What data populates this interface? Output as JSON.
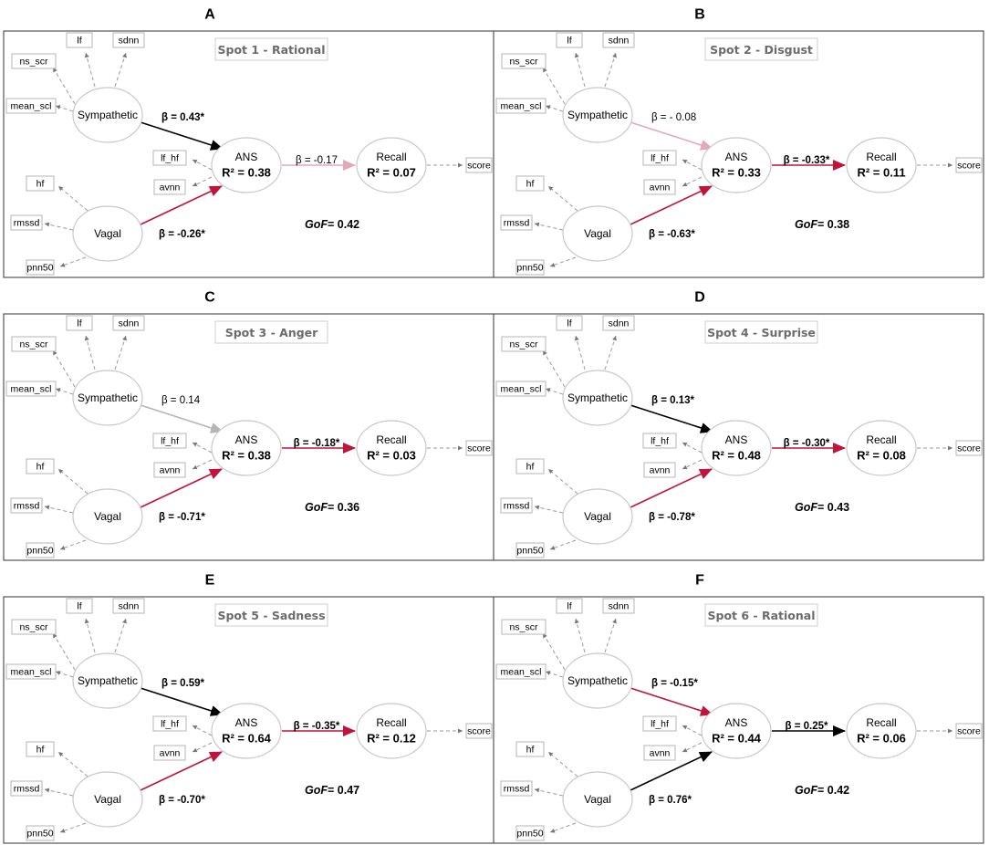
{
  "panels": [
    {
      "letter": "A",
      "title": "Spot 1 - Rational",
      "sym_beta": {
        "value": "β = 0.43*",
        "sig": true,
        "dir": "pos"
      },
      "vag_beta": {
        "value": "β = -0.26*",
        "sig": true,
        "dir": "neg"
      },
      "ans_beta": {
        "value": "β = -0.17",
        "sig": false,
        "dir": "neg"
      },
      "ans_r2": "R² = 0.38",
      "recall_r2": "R² = 0.07",
      "gof": "0.42"
    },
    {
      "letter": "B",
      "title": "Spot 2 - Disgust",
      "sym_beta": {
        "value": "β = - 0.08",
        "sig": false,
        "dir": "neg"
      },
      "vag_beta": {
        "value": "β = -0.63*",
        "sig": true,
        "dir": "neg"
      },
      "ans_beta": {
        "value": "β = -0.33*",
        "sig": true,
        "dir": "neg"
      },
      "ans_r2": "R² = 0.33",
      "recall_r2": "R² = 0.11",
      "gof": "0.38"
    },
    {
      "letter": "C",
      "title": "Spot 3 - Anger",
      "sym_beta": {
        "value": "β = 0.14",
        "sig": false,
        "dir": "pos"
      },
      "vag_beta": {
        "value": "β = -0.71*",
        "sig": true,
        "dir": "neg"
      },
      "ans_beta": {
        "value": "β = -0.18*",
        "sig": true,
        "dir": "neg"
      },
      "ans_r2": "R² = 0.38",
      "recall_r2": "R² = 0.03",
      "gof": "0.36"
    },
    {
      "letter": "D",
      "title": "Spot 4 - Surprise",
      "sym_beta": {
        "value": "β = 0.13*",
        "sig": true,
        "dir": "pos"
      },
      "vag_beta": {
        "value": "β = -0.78*",
        "sig": true,
        "dir": "neg"
      },
      "ans_beta": {
        "value": "β = -0.30*",
        "sig": true,
        "dir": "neg"
      },
      "ans_r2": "R² = 0.48",
      "recall_r2": "R² = 0.08",
      "gof": "0.43"
    },
    {
      "letter": "E",
      "title": "Spot 5 - Sadness",
      "sym_beta": {
        "value": "β = 0.59*",
        "sig": true,
        "dir": "pos"
      },
      "vag_beta": {
        "value": "β = -0.70*",
        "sig": true,
        "dir": "neg"
      },
      "ans_beta": {
        "value": "β = -0.35*",
        "sig": true,
        "dir": "neg"
      },
      "ans_r2": "R² = 0.64",
      "recall_r2": "R² = 0.12",
      "gof": "0.47"
    },
    {
      "letter": "F",
      "title": "Spot 6 - Rational",
      "sym_beta": {
        "value": "β = -0.15*",
        "sig": true,
        "dir": "neg"
      },
      "vag_beta": {
        "value": "β = 0.76*",
        "sig": true,
        "dir": "pos"
      },
      "ans_beta": {
        "value": "β = 0.25*",
        "sig": true,
        "dir": "pos"
      },
      "ans_r2": "R² = 0.44",
      "recall_r2": "R² = 0.06",
      "gof": "0.42"
    }
  ],
  "labels": {
    "sympathetic": "Sympathetic",
    "vagal": "Vagal",
    "ans": "ANS",
    "recall": "Recall",
    "gof_prefix": "GoF"
  },
  "indicators": {
    "lf": "lf",
    "sdnn": "sdnn",
    "ns_scr": "ns_scr",
    "mean_scl": "mean_scl",
    "lf_hf": "lf_hf",
    "avnn": "avnn",
    "hf": "hf",
    "rmssd": "rmssd",
    "pnn50": "pnn50",
    "score": "score"
  },
  "colors": {
    "positive": "#000000",
    "negative": "#c0143c",
    "nonsig_pos": "#b5b5b5",
    "nonsig_neg": "#e3a9b6",
    "border": "#333333",
    "ellipse": "#c8c8c8",
    "box": "#b5b5b5",
    "dash": "#9a9a9a",
    "title_box": "#cfcfcf"
  }
}
